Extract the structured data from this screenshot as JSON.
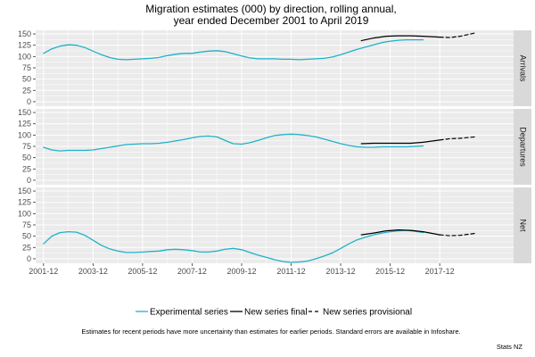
{
  "chart_title_line1": "Migration estimates (000) by direction, rolling annual,",
  "chart_title_line2": "year ended December 2001 to April 2019",
  "footnote": "Estimates for recent periods have more uncertainty than estimates for earlier periods. Standard errors are available in Infoshare.",
  "source": "Stats NZ",
  "colors": {
    "experimental": "#1fb2c9",
    "final": "#000000",
    "provisional": "#000000",
    "panel_bg": "#ebebeb",
    "strip_bg": "#d9d9d9",
    "grid": "#ffffff"
  },
  "chart_data": {
    "type": "line",
    "xlim": [
      2001.6,
      2020.9
    ],
    "x_tick_values": [
      2001.917,
      2003.917,
      2005.917,
      2007.917,
      2009.917,
      2011.917,
      2013.917,
      2015.917,
      2017.917
    ],
    "x_tick_labels": [
      "2001-12",
      "2003-12",
      "2005-12",
      "2007-12",
      "2009-12",
      "2011-12",
      "2013-12",
      "2015-12",
      "2017-12"
    ],
    "ylim": [
      -10,
      158
    ],
    "y_ticks": [
      0,
      25,
      50,
      75,
      100,
      125,
      150
    ],
    "y_tick_labels": [
      "0",
      "25",
      "50",
      "75",
      "100",
      "125",
      "150"
    ],
    "legend": [
      "Experimental series",
      "New series final",
      "New series provisional"
    ],
    "legend_position": "bottom",
    "grid": true,
    "panels": [
      {
        "name": "Arrivals",
        "series": [
          {
            "name": "Experimental series",
            "style": "experimental",
            "x": [
              2001.917,
              2002.25,
              2002.58,
              2002.92,
              2003.25,
              2003.58,
              2003.92,
              2004.25,
              2004.58,
              2004.92,
              2005.25,
              2005.58,
              2005.92,
              2006.25,
              2006.58,
              2006.92,
              2007.25,
              2007.58,
              2007.92,
              2008.25,
              2008.58,
              2008.92,
              2009.25,
              2009.58,
              2009.92,
              2010.25,
              2010.58,
              2010.92,
              2011.25,
              2011.58,
              2011.92,
              2012.25,
              2012.58,
              2012.92,
              2013.25,
              2013.58,
              2013.92,
              2014.25,
              2014.58,
              2014.92,
              2015.25,
              2015.58,
              2015.92,
              2016.25,
              2016.58,
              2016.92,
              2017.25
            ],
            "y": [
              107,
              117,
              123,
              126,
              125,
              120,
              112,
              104,
              98,
              94,
              93,
              94,
              95,
              96,
              98,
              102,
              105,
              107,
              107,
              110,
              112,
              113,
              111,
              106,
              101,
              97,
              95,
              95,
              95,
              94,
              94,
              93,
              94,
              95,
              96,
              99,
              104,
              110,
              116,
              121,
              126,
              131,
              134,
              136,
              137,
              137,
              137
            ]
          },
          {
            "name": "New series final",
            "style": "final",
            "x": [
              2014.75,
              2015.25,
              2015.75,
              2016.25,
              2016.75,
              2017.25,
              2017.92
            ],
            "y": [
              135,
              141,
              145,
              146,
              146,
              145,
              143
            ]
          },
          {
            "name": "New series provisional",
            "style": "provisional",
            "x": [
              2017.92,
              2018.33,
              2018.75,
              2019.33
            ],
            "y": [
              143,
              142,
              145,
              152
            ]
          }
        ]
      },
      {
        "name": "Departures",
        "series": [
          {
            "name": "Experimental series",
            "style": "experimental",
            "x": [
              2001.917,
              2002.25,
              2002.58,
              2002.92,
              2003.25,
              2003.58,
              2003.92,
              2004.25,
              2004.58,
              2004.92,
              2005.25,
              2005.58,
              2005.92,
              2006.25,
              2006.58,
              2006.92,
              2007.25,
              2007.58,
              2007.92,
              2008.25,
              2008.58,
              2008.92,
              2009.25,
              2009.58,
              2009.92,
              2010.25,
              2010.58,
              2010.92,
              2011.25,
              2011.58,
              2011.92,
              2012.25,
              2012.58,
              2012.92,
              2013.25,
              2013.58,
              2013.92,
              2014.25,
              2014.58,
              2014.92,
              2015.25,
              2015.58,
              2015.92,
              2016.25,
              2016.58,
              2016.92,
              2017.25
            ],
            "y": [
              73,
              67,
              65,
              66,
              66,
              66,
              67,
              70,
              73,
              76,
              79,
              80,
              81,
              81,
              82,
              84,
              87,
              90,
              94,
              97,
              98,
              96,
              88,
              81,
              80,
              83,
              88,
              94,
              99,
              101,
              102,
              101,
              99,
              96,
              91,
              86,
              81,
              77,
              74,
              73,
              73,
              74,
              74,
              74,
              74,
              75,
              76
            ]
          },
          {
            "name": "New series final",
            "style": "final",
            "x": [
              2014.75,
              2015.25,
              2015.75,
              2016.25,
              2016.75,
              2017.25,
              2017.92
            ],
            "y": [
              81,
              82,
              82,
              82,
              82,
              84,
              89
            ]
          },
          {
            "name": "New series provisional",
            "style": "provisional",
            "x": [
              2017.92,
              2018.33,
              2018.75,
              2019.33
            ],
            "y": [
              89,
              92,
              93,
              96
            ]
          }
        ]
      },
      {
        "name": "Net",
        "series": [
          {
            "name": "Experimental series",
            "style": "experimental",
            "x": [
              2001.917,
              2002.25,
              2002.58,
              2002.92,
              2003.25,
              2003.58,
              2003.92,
              2004.25,
              2004.58,
              2004.92,
              2005.25,
              2005.58,
              2005.92,
              2006.25,
              2006.58,
              2006.92,
              2007.25,
              2007.58,
              2007.92,
              2008.25,
              2008.58,
              2008.92,
              2009.25,
              2009.58,
              2009.92,
              2010.25,
              2010.58,
              2010.92,
              2011.25,
              2011.58,
              2011.92,
              2012.25,
              2012.58,
              2012.92,
              2013.25,
              2013.58,
              2013.92,
              2014.25,
              2014.58,
              2014.92,
              2015.25,
              2015.58,
              2015.92,
              2016.25,
              2016.58,
              2016.92,
              2017.25
            ],
            "y": [
              33,
              50,
              58,
              60,
              59,
              52,
              41,
              30,
              22,
              17,
              14,
              14,
              15,
              16,
              17,
              20,
              21,
              20,
              18,
              15,
              15,
              17,
              21,
              23,
              20,
              14,
              8,
              3,
              -2,
              -6,
              -8,
              -7,
              -5,
              0,
              6,
              13,
              23,
              33,
              42,
              48,
              53,
              57,
              60,
              62,
              63,
              61,
              58
            ]
          },
          {
            "name": "New series final",
            "style": "final",
            "x": [
              2014.75,
              2015.25,
              2015.75,
              2016.25,
              2016.75,
              2017.25,
              2017.92
            ],
            "y": [
              53,
              57,
              62,
              64,
              63,
              60,
              53
            ]
          },
          {
            "name": "New series provisional",
            "style": "provisional",
            "x": [
              2017.92,
              2018.33,
              2018.75,
              2019.33
            ],
            "y": [
              53,
              51,
              52,
              56
            ]
          }
        ]
      }
    ]
  }
}
